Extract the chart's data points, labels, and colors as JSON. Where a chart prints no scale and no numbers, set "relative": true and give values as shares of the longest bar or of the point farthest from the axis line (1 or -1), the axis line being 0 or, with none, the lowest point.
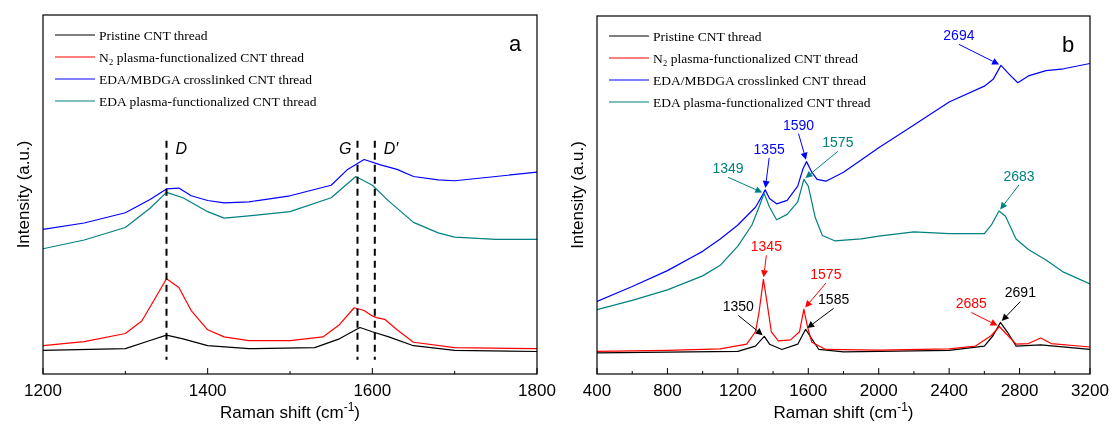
{
  "chart_data": [
    {
      "type": "line",
      "title": "a",
      "xlabel": "Raman shift (cm$^{-1}$)",
      "ylabel": "Intensity (a.u.)",
      "relative": true,
      "legend": "top left",
      "xlim": [
        1200,
        1800
      ],
      "xticks": [
        1200,
        {
          "value": 1300,
          "label": null
        },
        1400,
        {
          "value": 1500,
          "label": null
        },
        1600,
        {
          "value": 1700,
          "label": null
        },
        1800
      ],
      "ref_lines": [
        {
          "axis": "x",
          "value": 1350,
          "label": "D",
          "line_style": "dashed",
          "color": "#000000"
        },
        {
          "axis": "x",
          "value": 1582,
          "label": "G",
          "line_style": "dashed",
          "color": "#000000"
        },
        {
          "axis": "x",
          "value": 1603,
          "label": "D′",
          "line_style": "dashed",
          "color": "#000000"
        }
      ],
      "series": [
        {
          "name": "Pristine CNT thread",
          "color": "#000000",
          "x": [
            1200,
            1300,
            1330,
            1350,
            1370,
            1400,
            1450,
            1530,
            1560,
            1585,
            1600,
            1620,
            1650,
            1700,
            1800
          ],
          "values": [
            0.11,
            0.118,
            0.156,
            0.181,
            0.164,
            0.132,
            0.118,
            0.123,
            0.164,
            0.217,
            0.197,
            0.173,
            0.132,
            0.11,
            0.105
          ]
        },
        {
          "name": "N₂ plasma-functionalized CNT thread",
          "color": "#ff0000",
          "x": [
            1200,
            1250,
            1300,
            1320,
            1335,
            1350,
            1365,
            1380,
            1400,
            1420,
            1450,
            1500,
            1540,
            1560,
            1578,
            1590,
            1600,
            1605,
            1615,
            1630,
            1650,
            1700,
            1800
          ],
          "values": [
            0.132,
            0.151,
            0.189,
            0.247,
            0.345,
            0.444,
            0.403,
            0.296,
            0.206,
            0.173,
            0.156,
            0.156,
            0.173,
            0.23,
            0.309,
            0.296,
            0.271,
            0.263,
            0.255,
            0.206,
            0.148,
            0.123,
            0.118
          ]
        },
        {
          "name": "EDA/MBDGA crosslinked CNT thread",
          "color": "#0000ff",
          "x": [
            1200,
            1250,
            1300,
            1330,
            1350,
            1365,
            1380,
            1400,
            1420,
            1450,
            1500,
            1550,
            1570,
            1590,
            1610,
            1630,
            1650,
            1680,
            1700,
            1750,
            1800
          ],
          "values": [
            0.674,
            0.704,
            0.752,
            0.814,
            0.863,
            0.867,
            0.831,
            0.809,
            0.798,
            0.803,
            0.831,
            0.88,
            0.954,
            1,
            0.975,
            0.954,
            0.921,
            0.905,
            0.901,
            0.921,
            0.941
          ]
        },
        {
          "name": "EDA plasma-functionalized CNT thread",
          "color": "#008080",
          "x": [
            1200,
            1250,
            1300,
            1330,
            1350,
            1370,
            1400,
            1420,
            1450,
            1500,
            1550,
            1570,
            1580,
            1600,
            1620,
            1650,
            1680,
            1700,
            1750,
            1800
          ],
          "values": [
            0.584,
            0.625,
            0.683,
            0.773,
            0.847,
            0.822,
            0.757,
            0.727,
            0.737,
            0.757,
            0.822,
            0.888,
            0.921,
            0.88,
            0.806,
            0.707,
            0.658,
            0.638,
            0.628,
            0.628
          ]
        }
      ]
    },
    {
      "type": "line",
      "title": "b",
      "xlabel": "Raman shift (cm$^{-1}$)",
      "ylabel": "Intensity (a.u.)",
      "relative": true,
      "legend": "top left",
      "xlim": [
        400,
        3200
      ],
      "xticks": [
        400,
        {
          "value": 600,
          "label": null
        },
        800,
        {
          "value": 1000,
          "label": null
        },
        1200,
        {
          "value": 1400,
          "label": null
        },
        1600,
        {
          "value": 1800,
          "label": null
        },
        2000,
        {
          "value": 2200,
          "label": null
        },
        2400,
        {
          "value": 2600,
          "label": null
        },
        2800,
        {
          "value": 3000,
          "label": null
        },
        3200
      ],
      "annotations": [
        {
          "text": "2694",
          "x": 2694,
          "y": 0.994
        },
        {
          "text": "1355",
          "x": 1355,
          "y": 0.593
        },
        {
          "text": "1590",
          "x": 1590,
          "y": 0.684
        },
        {
          "text": "1349",
          "x": 1349,
          "y": 0.582
        },
        {
          "text": "1575",
          "x": 1575,
          "y": 0.627
        },
        {
          "text": "2683",
          "x": 2683,
          "y": 0.525
        },
        {
          "text": "1345",
          "x": 1345,
          "y": 0.305
        },
        {
          "text": "1575",
          "x": 1575,
          "y": 0.209
        },
        {
          "text": "1350",
          "x": 1350,
          "y": 0.121
        },
        {
          "text": "1585",
          "x": 1585,
          "y": 0.144
        },
        {
          "text": "2685",
          "x": 2685,
          "y": 0.153
        },
        {
          "text": "2691",
          "x": 2691,
          "y": 0.166
        }
      ],
      "series": [
        {
          "name": "Pristine CNT thread",
          "color": "#000000",
          "x": [
            400,
            1200,
            1300,
            1350,
            1380,
            1450,
            1540,
            1585,
            1620,
            1660,
            1800,
            2400,
            2600,
            2650,
            2691,
            2730,
            2780,
            2920,
            3200
          ],
          "values": [
            0.068,
            0.073,
            0.09,
            0.121,
            0.096,
            0.079,
            0.096,
            0.144,
            0.113,
            0.079,
            0.071,
            0.076,
            0.09,
            0.124,
            0.166,
            0.136,
            0.09,
            0.094,
            0.079
          ]
        },
        {
          "name": "N₂ plasma-functionalized CNT thread",
          "color": "#ff0000",
          "x": [
            400,
            800,
            1100,
            1250,
            1300,
            1320,
            1345,
            1365,
            1390,
            1430,
            1500,
            1550,
            1575,
            1595,
            1620,
            1700,
            2000,
            2400,
            2550,
            2640,
            2685,
            2720,
            2780,
            2850,
            2920,
            2980,
            3200
          ],
          "values": [
            0.073,
            0.076,
            0.081,
            0.096,
            0.136,
            0.198,
            0.305,
            0.232,
            0.136,
            0.107,
            0.11,
            0.136,
            0.209,
            0.153,
            0.102,
            0.079,
            0.077,
            0.081,
            0.09,
            0.124,
            0.153,
            0.132,
            0.096,
            0.098,
            0.116,
            0.098,
            0.087
          ]
        },
        {
          "name": "EDA/MBDGA crosslinked CNT thread",
          "color": "#0000ff",
          "x": [
            400,
            600,
            800,
            1000,
            1100,
            1200,
            1300,
            1340,
            1355,
            1380,
            1420,
            1480,
            1540,
            1570,
            1590,
            1620,
            1650,
            1700,
            1800,
            2000,
            2200,
            2400,
            2600,
            2650,
            2694,
            2750,
            2790,
            2850,
            2950,
            3050,
            3200
          ],
          "values": [
            0.234,
            0.282,
            0.333,
            0.395,
            0.435,
            0.48,
            0.537,
            0.576,
            0.593,
            0.565,
            0.548,
            0.559,
            0.605,
            0.661,
            0.684,
            0.65,
            0.627,
            0.621,
            0.65,
            0.729,
            0.802,
            0.876,
            0.927,
            0.949,
            0.994,
            0.96,
            0.938,
            0.96,
            0.977,
            0.983,
            1
          ]
        },
        {
          "name": "EDA plasma-functionalized CNT thread",
          "color": "#008080",
          "x": [
            400,
            600,
            800,
            1000,
            1100,
            1200,
            1280,
            1320,
            1349,
            1380,
            1420,
            1480,
            1540,
            1575,
            1600,
            1640,
            1680,
            1750,
            1900,
            2000,
            2200,
            2400,
            2600,
            2640,
            2683,
            2720,
            2780,
            2850,
            2950,
            3050,
            3200
          ],
          "values": [
            0.207,
            0.237,
            0.271,
            0.316,
            0.35,
            0.412,
            0.48,
            0.537,
            0.582,
            0.537,
            0.497,
            0.514,
            0.554,
            0.627,
            0.605,
            0.503,
            0.446,
            0.429,
            0.435,
            0.444,
            0.458,
            0.452,
            0.452,
            0.48,
            0.525,
            0.508,
            0.435,
            0.401,
            0.367,
            0.328,
            0.29
          ]
        }
      ]
    }
  ]
}
